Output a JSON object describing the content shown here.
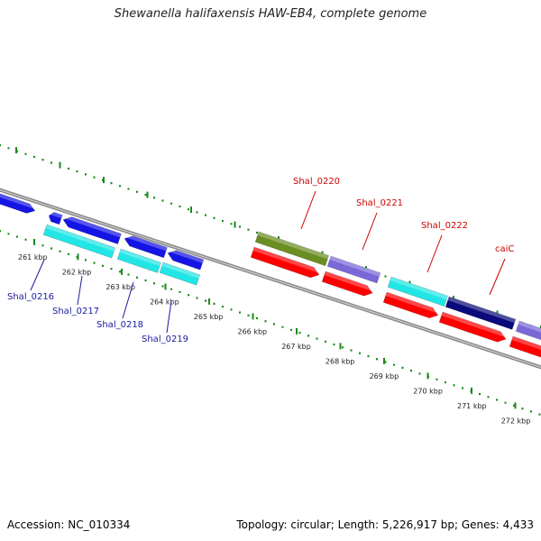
{
  "title": "Shewanella halifaxensis HAW-EB4, complete genome",
  "footer": {
    "accession": "Accession: NC_010334",
    "summary": "Topology: circular; Length: 5,226,917 bp; Genes: 4,433"
  },
  "ruler": {
    "ticks": [
      "261 kbp",
      "262 kbp",
      "263 kbp",
      "264 kbp",
      "265 kbp",
      "266 kbp",
      "267 kbp",
      "268 kbp",
      "269 kbp",
      "270 kbp",
      "271 kbp",
      "272 kbp"
    ]
  },
  "gene_labels_blue": [
    "Shal_0216",
    "Shal_0217",
    "Shal_0218",
    "Shal_0219"
  ],
  "gene_labels_red": [
    "Shal_0220",
    "Shal_0221",
    "Shal_0222",
    "caiC"
  ],
  "colors": {
    "backbone": "#8a8a8a",
    "tick": "#1a8a1a",
    "blue": "#1414e6",
    "cyan": "#22e6e6",
    "red": "#ff0000",
    "olive": "#6b8e23",
    "purple": "#7a68d8",
    "navy": "#0a0a7a",
    "label_blue": "#1a1aa0",
    "label_red": "#cc0000"
  }
}
